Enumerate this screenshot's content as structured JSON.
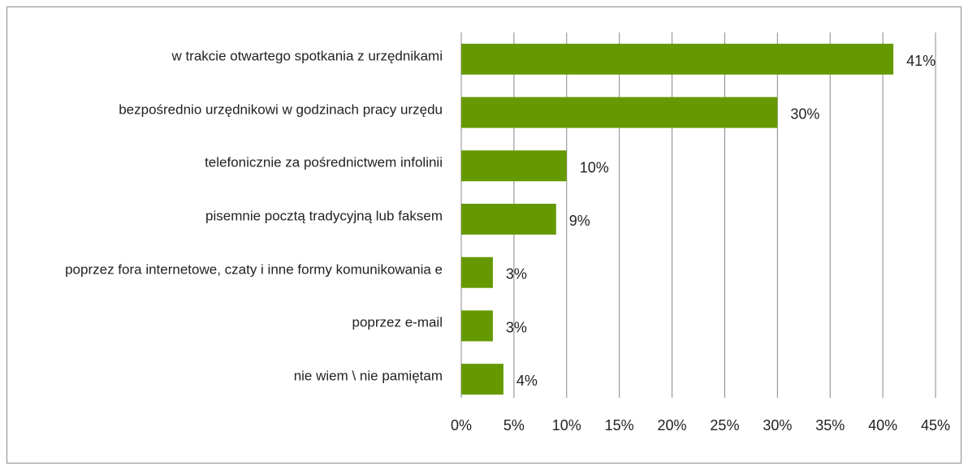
{
  "chart_data": {
    "type": "bar",
    "orientation": "horizontal",
    "categories": [
      "w trakcie otwartego spotkania z urzędnikami",
      "bezpośrednio urzędnikowi w godzinach pracy urzędu",
      "telefonicznie za pośrednictwem infolinii",
      "pisemnie pocztą tradycyjną  lub faksem",
      "poprzez fora internetowe, czaty i inne formy komunikowania e",
      "poprzez e-mail",
      "nie wiem \\ nie pamiętam"
    ],
    "values": [
      41,
      30,
      10,
      9,
      3,
      3,
      4
    ],
    "value_labels": [
      "41%",
      "30%",
      "10%",
      "9%",
      "3%",
      "3%",
      "4%"
    ],
    "color": "#669900",
    "xlim": [
      0,
      45
    ],
    "xticks": [
      {
        "value": 0,
        "label": "0%"
      },
      {
        "value": 5,
        "label": "5%"
      },
      {
        "value": 10,
        "label": "10%"
      },
      {
        "value": 15,
        "label": "15%"
      },
      {
        "value": 20,
        "label": "20%"
      },
      {
        "value": 25,
        "label": "25%"
      },
      {
        "value": 30,
        "label": "30%"
      },
      {
        "value": 35,
        "label": "35%"
      },
      {
        "value": 40,
        "label": "40%"
      },
      {
        "value": 45,
        "label": "45%"
      }
    ],
    "grid": true
  }
}
